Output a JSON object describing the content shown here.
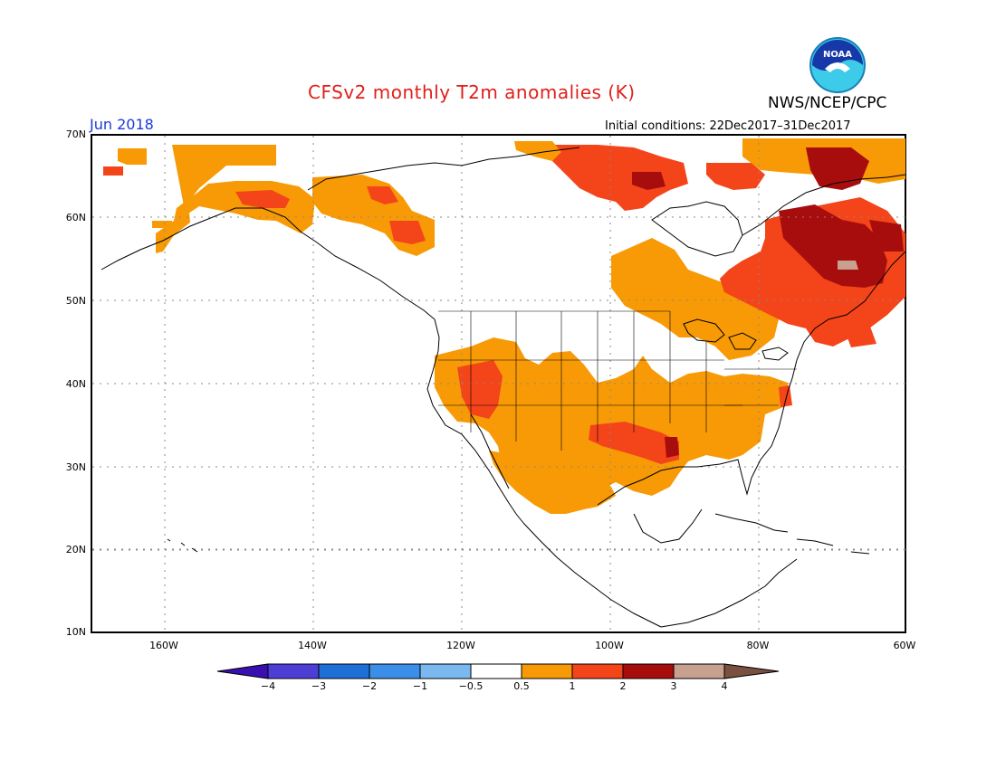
{
  "title": "CFSv2 monthly T2m anomalies (K)",
  "organization": "NWS/NCEP/CPC",
  "valid_month": "Jun 2018",
  "initial_conditions": "Initial conditions: 22Dec2017–31Dec2017",
  "logo_text": "NOAA",
  "lat_labels": [
    "70N",
    "60N",
    "50N",
    "40N",
    "30N",
    "20N",
    "10N"
  ],
  "lon_labels": [
    "160W",
    "140W",
    "120W",
    "100W",
    "80W",
    "60W"
  ],
  "colorbar": {
    "labels": [
      "−4",
      "−3",
      "−2",
      "−1",
      "−0.5",
      "0.5",
      "1",
      "2",
      "3",
      "4"
    ],
    "colors": [
      "#3a0fb0",
      "#4d3fd6",
      "#1f6fd9",
      "#3b8fe8",
      "#7ab8f0",
      "#ffffff",
      "#f79a06",
      "#f4441a",
      "#a80d0d",
      "#c8a090",
      "#7a5040"
    ]
  },
  "anomaly_colors": {
    "0.5-1": "#f79a06",
    "1-2": "#f4441a",
    "2-3": "#a80d0d",
    "3-4": "#c8a090"
  }
}
